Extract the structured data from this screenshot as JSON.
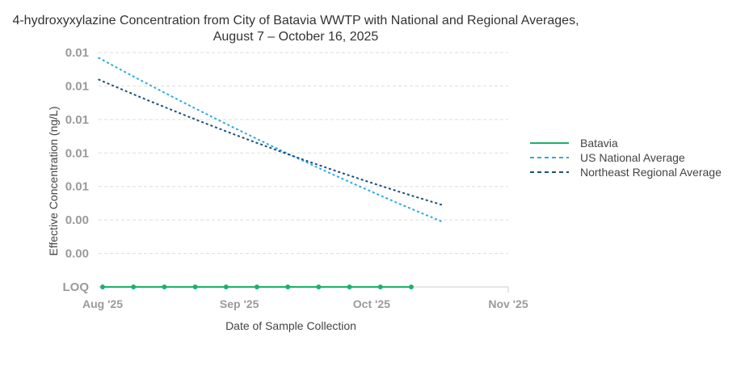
{
  "chart_data": {
    "type": "line",
    "title": "4-hydroxyxylazine Concentration from City of Batavia WWTP with National and Regional Averages,",
    "subtitle": "August 7 – October 16, 2025",
    "xlabel": "Date of Sample Collection",
    "ylabel": "Effective Concentration (ng/L)",
    "x_ticks": [
      "Aug '25",
      "Sep '25",
      "Oct '25",
      "Nov '25"
    ],
    "x_tick_dates": [
      "2025-08-01",
      "2025-09-01",
      "2025-10-01",
      "2025-11-01"
    ],
    "y_ticks": [
      "LOQ",
      "0.00",
      "0.00",
      "0.01",
      "0.01",
      "0.01",
      "0.01",
      "0.01"
    ],
    "grid": true,
    "legend_position": "right",
    "series": [
      {
        "name": "Batavia",
        "color": "#1ab26b",
        "style": "solid",
        "markers": true,
        "x": [
          "2025-08-01",
          "2025-08-08",
          "2025-08-15",
          "2025-08-22",
          "2025-08-29",
          "2025-09-05",
          "2025-09-12",
          "2025-09-19",
          "2025-09-26",
          "2025-10-03",
          "2025-10-10"
        ],
        "y_label": "LOQ"
      },
      {
        "name": "US National Average",
        "color": "#2eaae1",
        "style": "dashed",
        "markers": false,
        "x": [
          "2025-07-31",
          "2025-10-17"
        ],
        "y_level": [
          6.85,
          1.95
        ]
      },
      {
        "name": "Northeast Regional Average",
        "color": "#1b4f7c",
        "style": "dashed",
        "markers": false,
        "x": [
          "2025-07-31",
          "2025-10-17"
        ],
        "y_level": [
          6.2,
          2.45
        ]
      }
    ]
  },
  "legend": {
    "items": [
      {
        "label": "Batavia",
        "color": "#1ab26b",
        "dash": "solid"
      },
      {
        "label": "US National Average",
        "color": "#2eaae1",
        "dash": "dashed"
      },
      {
        "label": "Northeast Regional Average",
        "color": "#1b4f7c",
        "dash": "dashed"
      }
    ]
  }
}
